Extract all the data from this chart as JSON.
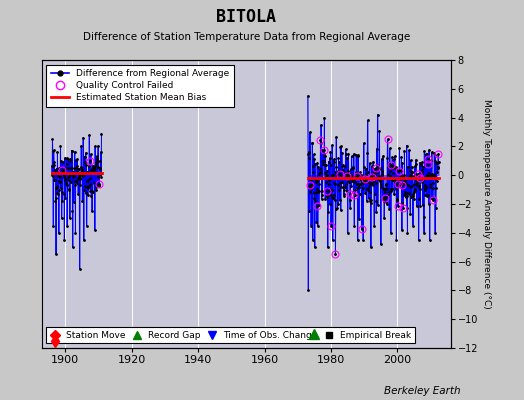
{
  "title": "BITOLA",
  "subtitle": "Difference of Station Temperature Data from Regional Average",
  "ylabel_right": "Monthly Temperature Anomaly Difference (°C)",
  "credit": "Berkeley Earth",
  "xlim": [
    1893,
    2016
  ],
  "ylim": [
    -12,
    8
  ],
  "yticks": [
    -12,
    -10,
    -8,
    -6,
    -4,
    -2,
    0,
    2,
    4,
    6,
    8
  ],
  "xticks": [
    1900,
    1920,
    1940,
    1960,
    1980,
    2000
  ],
  "fig_bg": "#c8c8c8",
  "plot_bg": "#c8c8d8",
  "grid_color": "#e0e0f0",
  "segment1_start": 1896.0,
  "segment1_end": 1911.0,
  "segment2_start": 1973.0,
  "segment2_end": 2012.5,
  "bias1": 0.15,
  "bias2": -0.2,
  "station_move_x": 1897,
  "record_gap_x": 1975,
  "seed1": 42,
  "seed2": 123,
  "seed_qc1": 7,
  "seed_qc2": 99
}
